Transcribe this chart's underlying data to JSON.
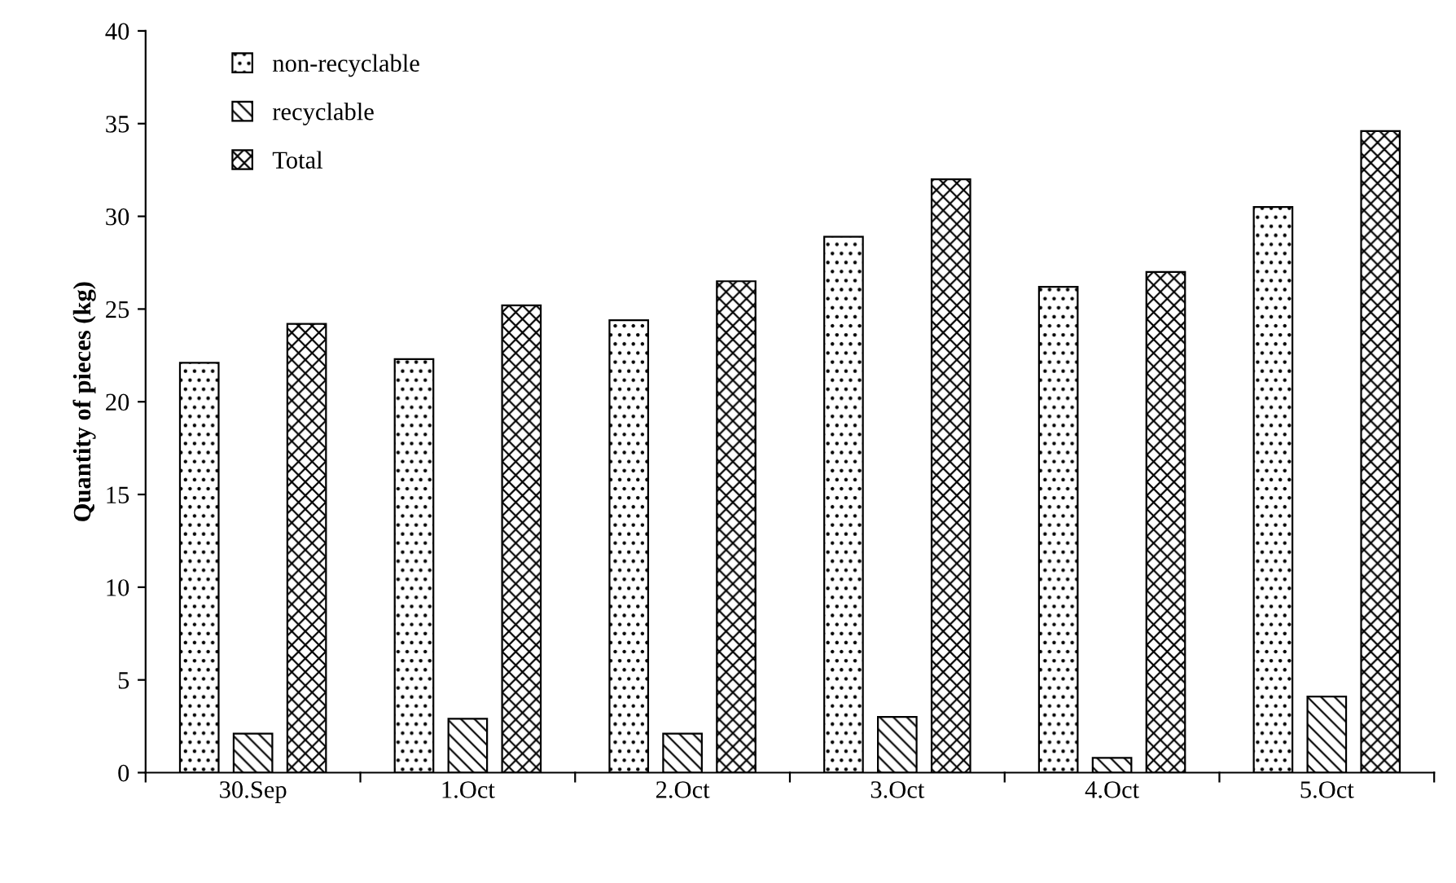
{
  "chart_data": {
    "type": "bar",
    "ylabel": "Quantity of pieces (kg)",
    "categories": [
      "30.Sep",
      "1.Oct",
      "2.Oct",
      "3.Oct",
      "4.Oct",
      "5.Oct"
    ],
    "series": [
      {
        "name": "non-recyclable",
        "color": "#000000",
        "values": [
          22.1,
          22.3,
          24.4,
          28.9,
          26.2,
          30.5
        ]
      },
      {
        "name": "recyclable",
        "color": "#000000",
        "values": [
          2.1,
          2.9,
          2.1,
          3.0,
          0.8,
          4.1
        ]
      },
      {
        "name": "Total",
        "color": "#000000",
        "values": [
          24.2,
          25.2,
          26.5,
          32.0,
          27.0,
          34.6
        ]
      }
    ],
    "ylim": [
      0,
      40
    ],
    "yticks": [
      0,
      5,
      10,
      15,
      20,
      25,
      30,
      35,
      40
    ],
    "grid": false,
    "legend": "top left"
  }
}
